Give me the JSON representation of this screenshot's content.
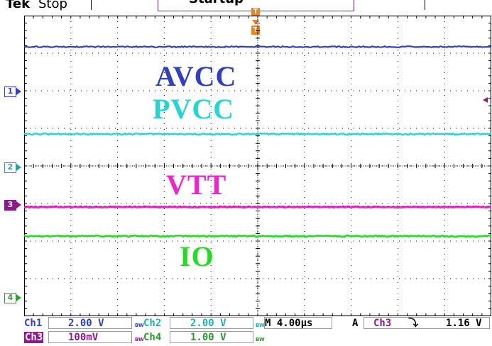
{
  "header": {
    "brand": "Tek",
    "acq_state": "Stop",
    "title": "Startup"
  },
  "trigger": {
    "position_marker": "T",
    "indicator": "T"
  },
  "channel_markers": {
    "ch1": "1",
    "ch2": "2",
    "ch3": "3",
    "ch4": "4"
  },
  "annotations": {
    "ch1": "AVCC",
    "ch2": "PVCC",
    "ch3": "VTT",
    "ch4": "IO"
  },
  "status": {
    "ch1_label": "Ch1",
    "ch1_scale": "2.00 V",
    "ch2_label": "Ch2",
    "ch2_scale": "2.00 V",
    "ch3_label": "Ch3",
    "ch3_scale": "100mV",
    "ch4_label": "Ch4",
    "ch4_scale": "1.00 V",
    "bw": "BW",
    "timebase": "M 4.00µs",
    "trigger_mode": "A",
    "trigger_source": "Ch3",
    "trigger_slope": "⤵",
    "trigger_level": "1.16 V"
  },
  "colors": {
    "ch1": "#3040c0",
    "ch2": "#22d6d6",
    "ch3": "#f024c8",
    "ch4": "#22dd22",
    "trigger": "#f08020"
  }
}
